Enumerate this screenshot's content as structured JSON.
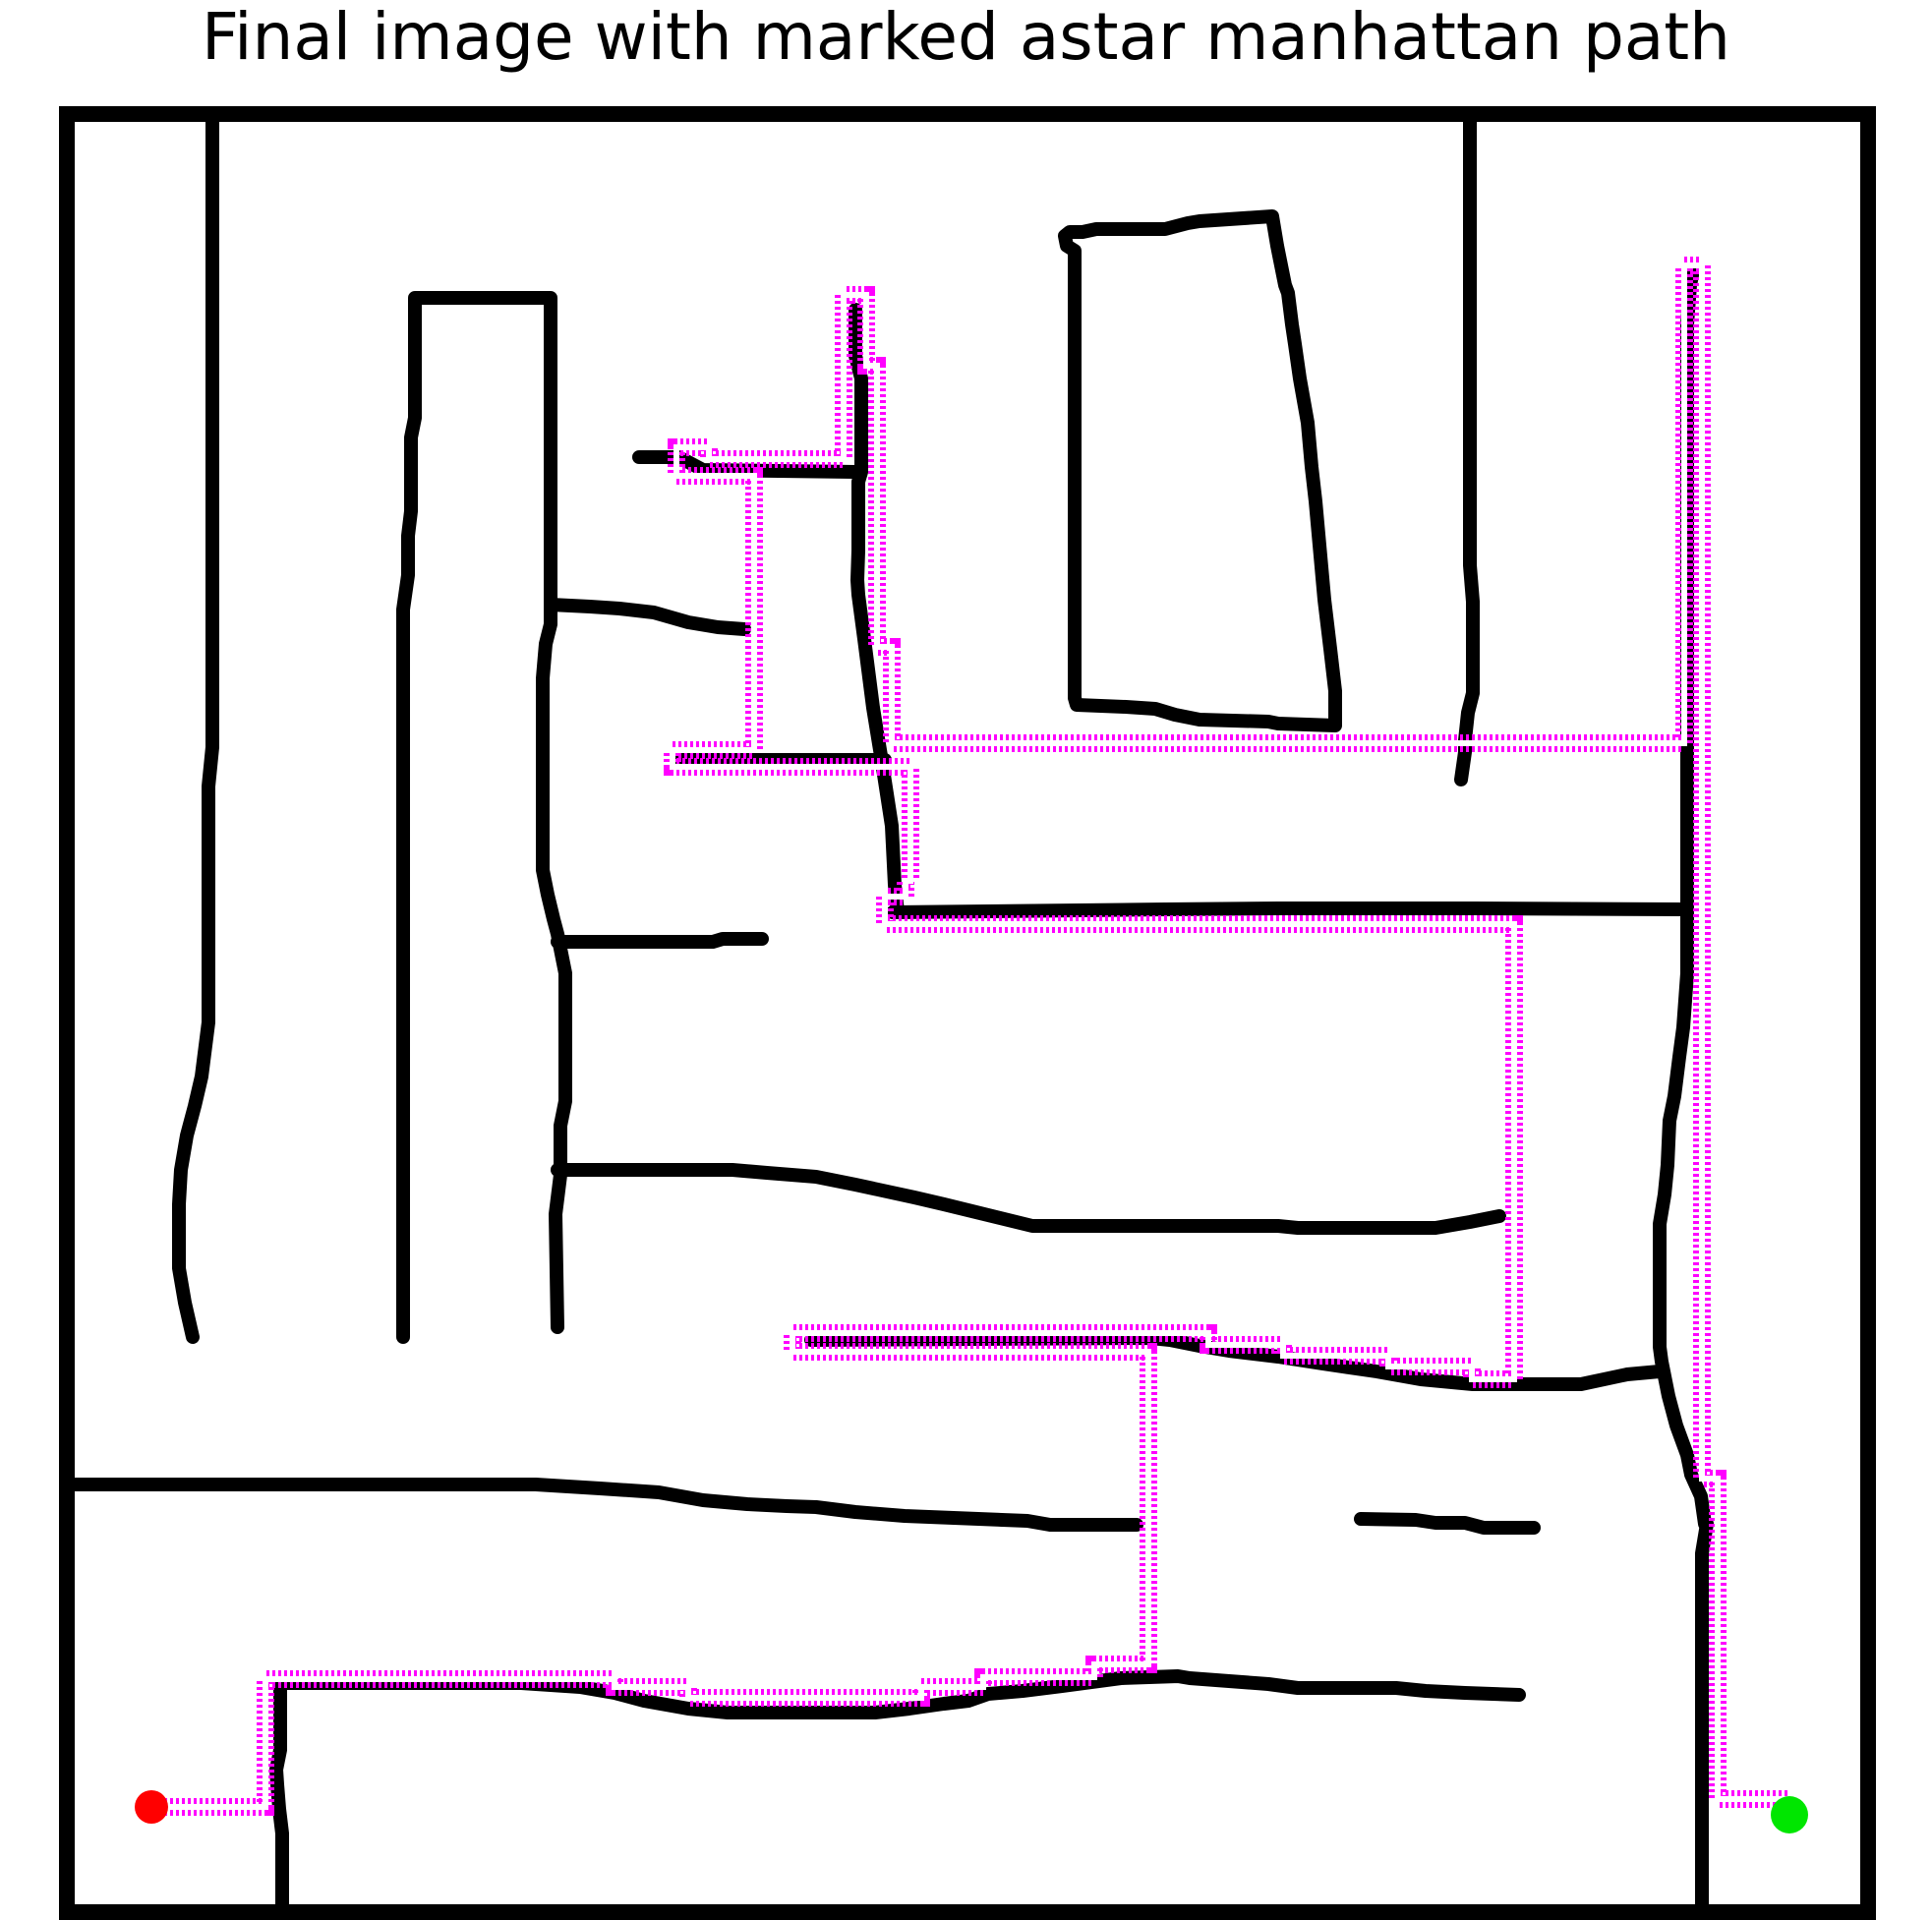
{
  "title": "Final image with marked astar manhattan path",
  "colors": {
    "background": "#ffffff",
    "walls": "#000000",
    "path": "#ff00ff",
    "start": "#ff0000",
    "goal": "#00e600"
  },
  "legend": {
    "start_marker": "red dot (start)",
    "goal_marker": "green dot (goal)"
  }
}
